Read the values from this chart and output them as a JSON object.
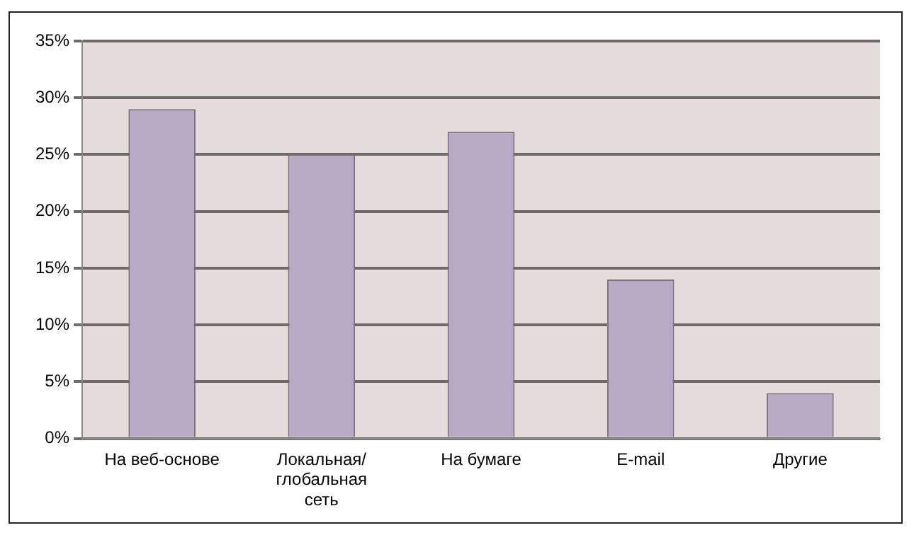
{
  "chart_data": {
    "type": "bar",
    "categories": [
      "На веб-основе",
      "Локальная/ глобальная сеть",
      "На бумаге",
      "E-mail",
      "Другие"
    ],
    "values": [
      29,
      25,
      27,
      14,
      4
    ],
    "color": "#b8aac4",
    "ylim": [
      0,
      35
    ],
    "yticks": [
      {
        "value": 0,
        "label": "0%"
      },
      {
        "value": 5,
        "label": "5%"
      },
      {
        "value": 10,
        "label": "10%"
      },
      {
        "value": 15,
        "label": "15%"
      },
      {
        "value": 20,
        "label": "20%"
      },
      {
        "value": 25,
        "label": "25%"
      },
      {
        "value": 30,
        "label": "30%"
      },
      {
        "value": 35,
        "label": "35%"
      }
    ],
    "grid": "y",
    "legend": false
  }
}
